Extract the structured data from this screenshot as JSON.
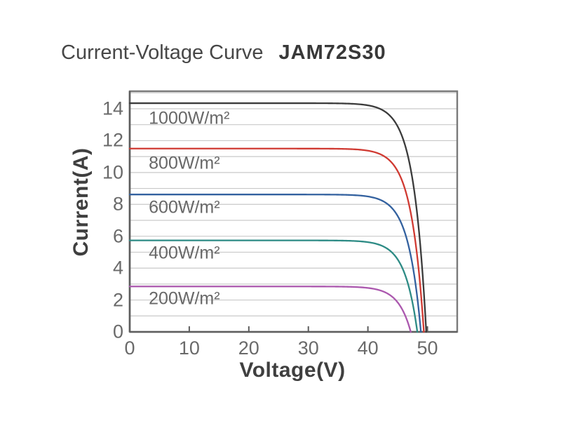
{
  "title": {
    "text": "Current-Voltage Curve",
    "model": "JAM72S30"
  },
  "chart_data": {
    "type": "line",
    "title": "Current-Voltage Curve JAM72S30",
    "xlabel": "Voltage(V)",
    "ylabel": "Current(A)",
    "xlim": [
      0,
      55
    ],
    "ylim": [
      0,
      15.1
    ],
    "x_ticks": [
      0,
      10,
      20,
      30,
      40,
      50
    ],
    "y_ticks": [
      0,
      2,
      4,
      6,
      8,
      10,
      12,
      14
    ],
    "grid": "horizontal gridlines every 1 A, no vertical gridlines",
    "legend_position": "labels inside plot under each curve",
    "curve_model": "I(V) = Isc*(1-exp((V-Voc)/knee_softness)), clipped at 0",
    "knee_softness": 2.1,
    "series": [
      {
        "name": "1000W/m²",
        "isc_a": 14.35,
        "voc_v": 49.8,
        "color": "#3b3b3b",
        "label_x_v": 3.2,
        "label_y_a": 13.4
      },
      {
        "name": "800W/m²",
        "isc_a": 11.5,
        "voc_v": 49.4,
        "color": "#d03a32",
        "label_x_v": 3.2,
        "label_y_a": 10.58
      },
      {
        "name": "600W/m²",
        "isc_a": 8.62,
        "voc_v": 48.9,
        "color": "#33619f",
        "label_x_v": 3.2,
        "label_y_a": 7.8
      },
      {
        "name": "400W/m²",
        "isc_a": 5.74,
        "voc_v": 48.3,
        "color": "#2d8b85",
        "label_x_v": 3.2,
        "label_y_a": 4.95
      },
      {
        "name": "200W/m²",
        "isc_a": 2.85,
        "voc_v": 47.2,
        "color": "#ab58ae",
        "label_x_v": 3.2,
        "label_y_a": 2.08
      }
    ],
    "colors": {
      "grid": "#c9c9c9",
      "frame": "#7a7a7a",
      "axis_line": "#5e5e5e",
      "tick_text": "#6a6a6a",
      "axis_title_text": "#3f3f3f",
      "title_text": "#474747"
    }
  }
}
